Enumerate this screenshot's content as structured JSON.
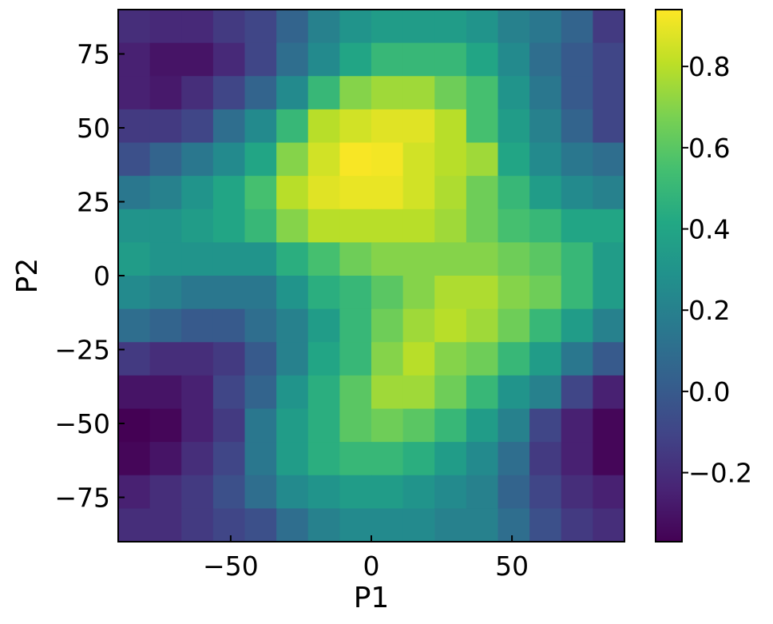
{
  "chart_data": {
    "type": "heatmap",
    "xlabel": "P1",
    "ylabel": "P2",
    "title": "",
    "xlim": [
      -90,
      90
    ],
    "ylim": [
      -90,
      90
    ],
    "x_ticks": [
      -50,
      0,
      50
    ],
    "x_tick_labels": [
      "−50",
      "0",
      "50"
    ],
    "y_ticks": [
      -75,
      -50,
      -25,
      0,
      25,
      50,
      75
    ],
    "y_tick_labels": [
      "−75",
      "−50",
      "−25",
      "0",
      "25",
      "50",
      "75"
    ],
    "x_edges": [
      -90,
      -78.75,
      -67.5,
      -56.25,
      -45,
      -33.75,
      -22.5,
      -11.25,
      0,
      11.25,
      22.5,
      33.75,
      45,
      56.25,
      67.5,
      78.75,
      90
    ],
    "y_edges": [
      90,
      78.75,
      67.5,
      56.25,
      45,
      33.75,
      22.5,
      11.25,
      0,
      -11.25,
      -22.5,
      -33.75,
      -45,
      -56.25,
      -67.5,
      -78.75,
      -90
    ],
    "values": [
      [
        -0.2,
        -0.22,
        -0.22,
        -0.15,
        -0.1,
        0.05,
        0.2,
        0.3,
        0.35,
        0.35,
        0.35,
        0.3,
        0.2,
        0.15,
        0.05,
        -0.15
      ],
      [
        -0.25,
        -0.3,
        -0.3,
        -0.22,
        -0.1,
        0.1,
        0.25,
        0.4,
        0.5,
        0.5,
        0.5,
        0.4,
        0.25,
        0.1,
        0.0,
        -0.1
      ],
      [
        -0.25,
        -0.28,
        -0.2,
        -0.1,
        0.05,
        0.25,
        0.5,
        0.7,
        0.75,
        0.75,
        0.65,
        0.55,
        0.3,
        0.15,
        0.0,
        -0.1
      ],
      [
        -0.15,
        -0.15,
        -0.1,
        0.1,
        0.25,
        0.5,
        0.8,
        0.85,
        0.88,
        0.88,
        0.8,
        0.55,
        0.35,
        0.2,
        0.05,
        -0.1
      ],
      [
        -0.05,
        0.05,
        0.15,
        0.25,
        0.4,
        0.7,
        0.85,
        0.93,
        0.92,
        0.85,
        0.8,
        0.75,
        0.4,
        0.25,
        0.15,
        0.1
      ],
      [
        0.15,
        0.2,
        0.3,
        0.4,
        0.55,
        0.8,
        0.88,
        0.9,
        0.9,
        0.85,
        0.78,
        0.65,
        0.5,
        0.35,
        0.25,
        0.2
      ],
      [
        0.3,
        0.3,
        0.35,
        0.4,
        0.5,
        0.7,
        0.8,
        0.8,
        0.8,
        0.8,
        0.75,
        0.65,
        0.55,
        0.5,
        0.4,
        0.4
      ],
      [
        0.35,
        0.3,
        0.3,
        0.3,
        0.3,
        0.45,
        0.55,
        0.65,
        0.7,
        0.7,
        0.7,
        0.7,
        0.65,
        0.6,
        0.5,
        0.35
      ],
      [
        0.25,
        0.2,
        0.15,
        0.15,
        0.15,
        0.3,
        0.45,
        0.5,
        0.6,
        0.7,
        0.78,
        0.78,
        0.7,
        0.65,
        0.5,
        0.35
      ],
      [
        0.1,
        0.05,
        0.0,
        0.0,
        0.1,
        0.2,
        0.35,
        0.5,
        0.65,
        0.75,
        0.8,
        0.75,
        0.65,
        0.5,
        0.35,
        0.2
      ],
      [
        -0.15,
        -0.2,
        -0.2,
        -0.15,
        0.0,
        0.2,
        0.4,
        0.5,
        0.7,
        0.8,
        0.7,
        0.65,
        0.5,
        0.35,
        0.15,
        0.0
      ],
      [
        -0.3,
        -0.3,
        -0.25,
        -0.1,
        0.05,
        0.3,
        0.45,
        0.6,
        0.75,
        0.75,
        0.65,
        0.5,
        0.3,
        0.2,
        -0.1,
        -0.25
      ],
      [
        -0.38,
        -0.35,
        -0.25,
        -0.15,
        0.15,
        0.35,
        0.45,
        0.6,
        0.65,
        0.6,
        0.5,
        0.35,
        0.2,
        -0.1,
        -0.25,
        -0.35
      ],
      [
        -0.35,
        -0.3,
        -0.2,
        -0.1,
        0.15,
        0.35,
        0.45,
        0.5,
        0.5,
        0.45,
        0.35,
        0.25,
        0.1,
        -0.15,
        -0.25,
        -0.35
      ],
      [
        -0.25,
        -0.2,
        -0.15,
        -0.05,
        0.1,
        0.25,
        0.3,
        0.35,
        0.35,
        0.3,
        0.25,
        0.2,
        0.05,
        -0.1,
        -0.2,
        -0.25
      ],
      [
        -0.2,
        -0.2,
        -0.15,
        -0.1,
        -0.05,
        0.1,
        0.2,
        0.25,
        0.25,
        0.25,
        0.2,
        0.2,
        0.1,
        -0.05,
        -0.15,
        -0.2
      ]
    ],
    "colormap": "viridis",
    "vmin": -0.37,
    "vmax": 0.94,
    "colorbar_ticks": [
      -0.2,
      0.0,
      0.2,
      0.4,
      0.6,
      0.8
    ],
    "colorbar_tick_labels": [
      "−0.2",
      "0.0",
      "0.2",
      "0.4",
      "0.6",
      "0.8"
    ],
    "grid": false,
    "legend": "none"
  }
}
